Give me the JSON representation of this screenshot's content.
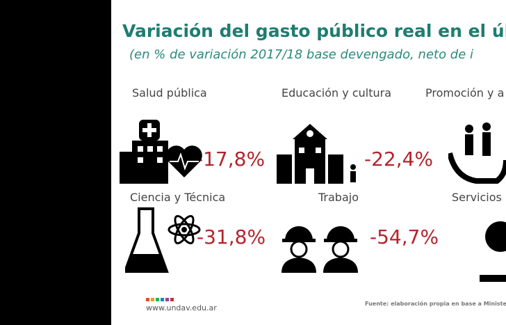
{
  "header": {
    "title": "Variación del gasto público real en el últim",
    "subtitle": "(en % de variación 2017/18 base devengado, neto de i"
  },
  "items": [
    {
      "label": "Salud pública",
      "value": "-17,8%"
    },
    {
      "label": "Educación y cultura",
      "value": "-22,4%"
    },
    {
      "label": "Promoción y a"
    },
    {
      "label": "Ciencia y Técnica",
      "value": "-31,8%"
    },
    {
      "label": "Trabajo",
      "value": "-54,7%"
    },
    {
      "label": "Servicios"
    }
  ],
  "footer": {
    "site": "www.undav.edu.ar",
    "source": "Fuente: elaboración propia en base a Ministerio de"
  }
}
